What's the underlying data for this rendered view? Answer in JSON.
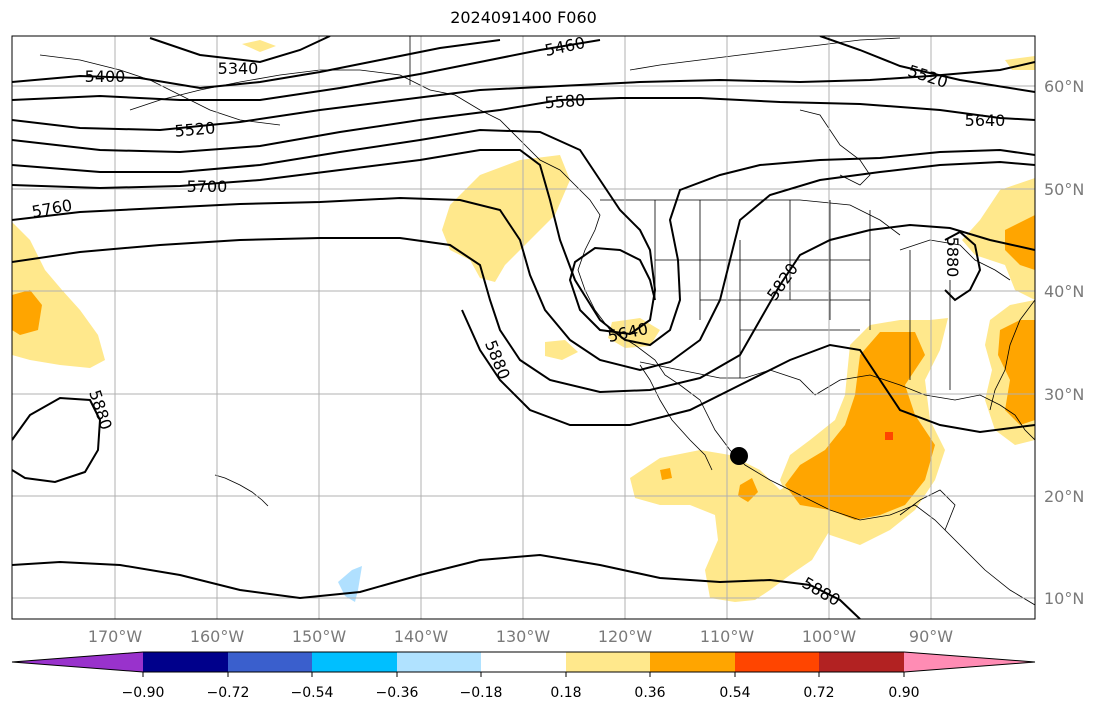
{
  "title": "2024091400 F060",
  "map": {
    "lon_labels": [
      "170°W",
      "160°W",
      "150°W",
      "140°W",
      "130°W",
      "120°W",
      "110°W",
      "100°W",
      "90°W"
    ],
    "lat_labels": [
      "60°N",
      "50°N",
      "40°N",
      "30°N",
      "20°N",
      "10°N"
    ],
    "contour_labels": [
      "5340",
      "5400",
      "5460",
      "5520",
      "5520",
      "5580",
      "5640",
      "5640",
      "5700",
      "5760",
      "5820",
      "5880",
      "5880",
      "5880",
      "5880"
    ],
    "colors": {
      "fill_low": "#ffe88c",
      "fill_mid": "#ffa500",
      "fill_high": "#ff4500",
      "fill_neg": "#b0e0ff",
      "contour": "#000000",
      "grid": "#b0b0b0"
    }
  },
  "colorbar": {
    "labels": [
      "−0.90",
      "−0.72",
      "−0.54",
      "−0.36",
      "−0.18",
      "0.18",
      "0.36",
      "0.54",
      "0.72",
      "0.90"
    ],
    "colors": [
      "#9932cc",
      "#00008b",
      "#3a5fcd",
      "#00bfff",
      "#b0e2ff",
      "#ffffff",
      "#ffe88c",
      "#ffa500",
      "#ff4500",
      "#b22222",
      "#ff8cb4"
    ]
  }
}
